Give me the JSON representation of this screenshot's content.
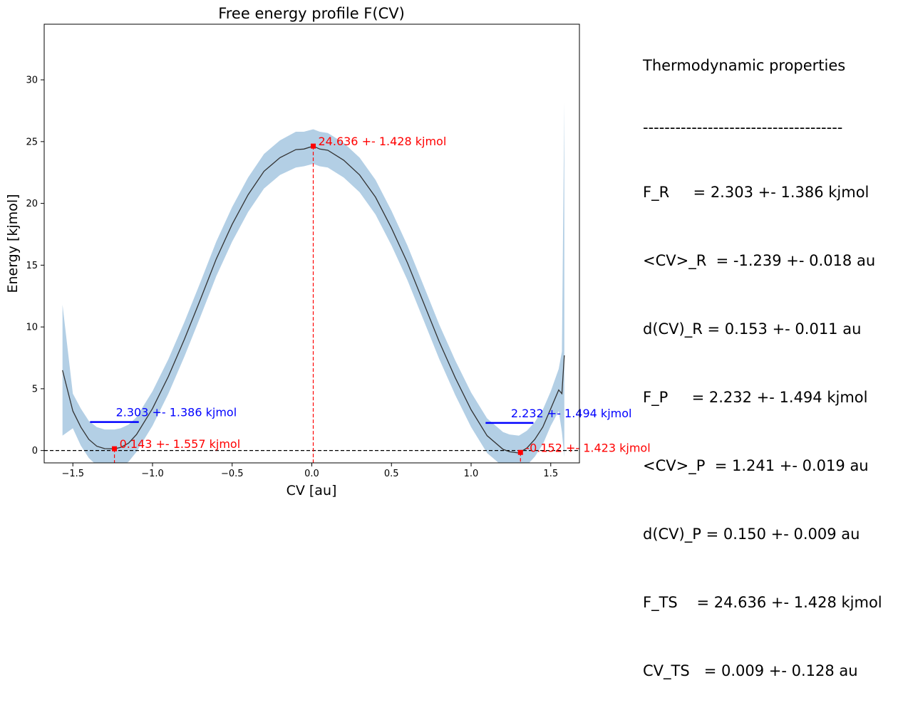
{
  "chart_data": {
    "type": "line",
    "title": "Free energy profile F(CV)",
    "xlabel": "CV [au]",
    "ylabel": "Energy [kjmol]",
    "xlim": [
      -1.68,
      1.68
    ],
    "ylim": [
      -1.0,
      34.5
    ],
    "xticks": [
      -1.5,
      -1.0,
      -0.5,
      0.0,
      0.5,
      1.0,
      1.5
    ],
    "xtick_labels": [
      "−1.5",
      "−1.0",
      "−0.5",
      "0.0",
      "0.5",
      "1.0",
      "1.5"
    ],
    "yticks": [
      0,
      5,
      10,
      15,
      20,
      25,
      30
    ],
    "ytick_labels": [
      "0",
      "5",
      "10",
      "15",
      "20",
      "25",
      "30"
    ],
    "grid": false,
    "series": [
      {
        "style": "mean line",
        "color": "#333333",
        "x": [
          -1.565,
          -1.5,
          -1.45,
          -1.4,
          -1.35,
          -1.3,
          -1.239,
          -1.2,
          -1.15,
          -1.1,
          -1.0,
          -0.9,
          -0.8,
          -0.7,
          -0.6,
          -0.5,
          -0.4,
          -0.3,
          -0.2,
          -0.1,
          -0.05,
          0.009,
          0.05,
          0.1,
          0.2,
          0.3,
          0.4,
          0.5,
          0.6,
          0.7,
          0.8,
          0.9,
          1.0,
          1.1,
          1.2,
          1.241,
          1.3,
          1.35,
          1.4,
          1.45,
          1.5,
          1.55,
          1.57,
          1.585
        ],
        "y": [
          6.5,
          3.2,
          1.9,
          0.9,
          0.35,
          0.15,
          0.14,
          0.25,
          0.6,
          1.3,
          3.4,
          6.0,
          9.0,
          12.2,
          15.5,
          18.3,
          20.7,
          22.6,
          23.7,
          24.35,
          24.4,
          24.636,
          24.4,
          24.3,
          23.5,
          22.3,
          20.5,
          18.0,
          15.2,
          12.0,
          8.8,
          5.9,
          3.3,
          1.2,
          0.1,
          -0.1,
          -0.2,
          0.2,
          0.9,
          1.9,
          3.4,
          4.9,
          4.6,
          7.7
        ]
      },
      {
        "style": "uncertainty band",
        "color": "#b3cfe5",
        "x": [
          -1.565,
          -1.5,
          -1.45,
          -1.4,
          -1.35,
          -1.3,
          -1.239,
          -1.2,
          -1.15,
          -1.1,
          -1.0,
          -0.9,
          -0.8,
          -0.7,
          -0.6,
          -0.5,
          -0.4,
          -0.3,
          -0.2,
          -0.1,
          -0.05,
          0.009,
          0.05,
          0.1,
          0.2,
          0.3,
          0.4,
          0.5,
          0.6,
          0.7,
          0.8,
          0.9,
          1.0,
          1.1,
          1.2,
          1.241,
          1.3,
          1.35,
          1.4,
          1.45,
          1.5,
          1.55,
          1.57,
          1.585
        ],
        "lower": [
          1.2,
          1.8,
          0.4,
          -0.6,
          -1.2,
          -1.4,
          -1.4,
          -1.3,
          -0.9,
          -0.1,
          2.0,
          4.6,
          7.6,
          10.8,
          14.1,
          16.9,
          19.3,
          21.2,
          22.3,
          22.9,
          23.0,
          23.2,
          23.0,
          22.9,
          22.1,
          20.9,
          19.1,
          16.6,
          13.8,
          10.6,
          7.4,
          4.5,
          1.9,
          -0.2,
          -1.3,
          -1.5,
          -1.6,
          -1.2,
          -0.5,
          0.5,
          2.0,
          3.2,
          1.5,
          -0.5
        ],
        "upper": [
          11.8,
          4.6,
          3.4,
          2.4,
          1.9,
          1.7,
          1.7,
          1.8,
          2.1,
          2.7,
          4.8,
          7.4,
          10.4,
          13.6,
          16.9,
          19.7,
          22.1,
          24.0,
          25.1,
          25.8,
          25.8,
          26.0,
          25.8,
          25.7,
          24.9,
          23.7,
          21.9,
          19.4,
          16.6,
          13.4,
          10.2,
          7.3,
          4.7,
          2.6,
          1.5,
          1.3,
          1.2,
          1.6,
          2.3,
          3.3,
          4.8,
          6.6,
          8.0,
          28.2
        ]
      }
    ],
    "reference_line": {
      "y": 0,
      "style": "dashed",
      "color": "#000000"
    },
    "markers": [
      {
        "x": -1.239,
        "y": 0.143,
        "color": "#ff0000",
        "label": "0.143 +- 1.557 kjmol",
        "vline": true
      },
      {
        "x": 0.009,
        "y": 24.636,
        "color": "#ff0000",
        "label": "24.636 +- 1.428 kjmol",
        "vline": true
      },
      {
        "x": 1.31,
        "y": -0.152,
        "color": "#ff0000",
        "label": "-0.152 +- 1.423 kjmol",
        "vline": true
      }
    ],
    "levels": [
      {
        "x_from": -1.392,
        "x_to": -1.086,
        "y": 2.303,
        "color": "#0000ff",
        "label": "2.303 +- 1.386 kjmol"
      },
      {
        "x_from": 1.091,
        "x_to": 1.391,
        "y": 2.232,
        "color": "#0000ff",
        "label": "2.232 +- 1.494 kjmol"
      }
    ]
  },
  "thermo": {
    "title": "Thermodynamic properties",
    "rule": "-------------------------------------",
    "lines": [
      "F_R     = 2.303 +- 1.386 kjmol",
      "<CV>_R  = -1.239 +- 0.018 au",
      "d(CV)_R = 0.153 +- 0.011 au",
      "F_P     = 2.232 +- 1.494 kjmol",
      "<CV>_P  = 1.241 +- 0.019 au",
      "d(CV)_P = 0.150 +- 0.009 au",
      "F_TS    = 24.636 +- 1.428 kjmol",
      "CV_TS   = 0.009 +- 0.128 au"
    ]
  }
}
